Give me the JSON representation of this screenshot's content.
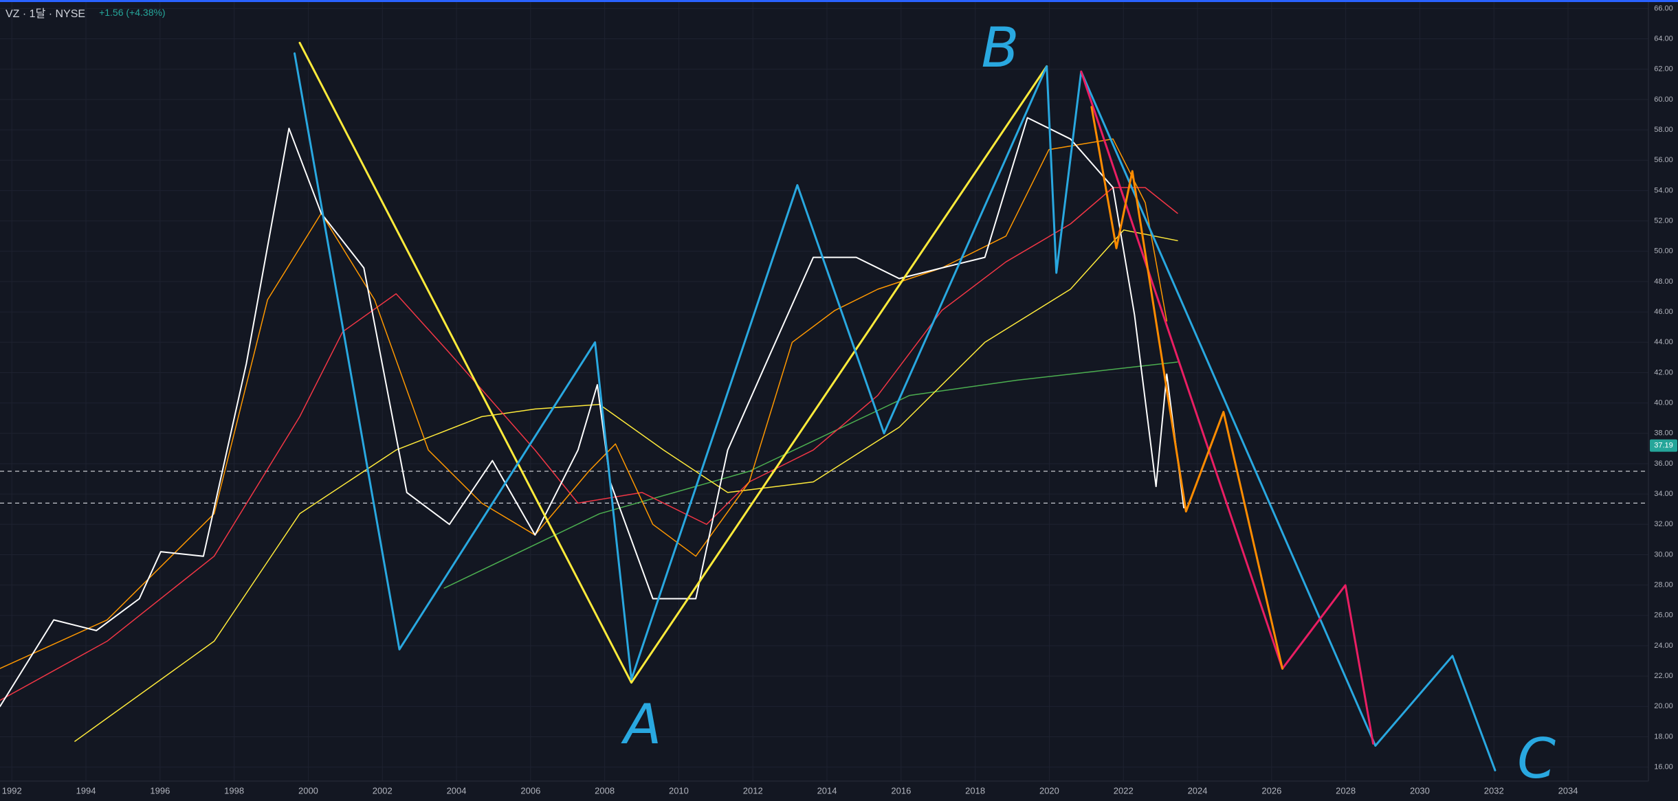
{
  "header": {
    "symbol": "VZ · 1달 · NYSE",
    "change": "+1.56 (+4.38%)"
  },
  "chart_data": {
    "type": "line",
    "xlim": [
      1991.68,
      2036.17
    ],
    "ylim": [
      15.08,
      66.56
    ],
    "xticks": [
      1992,
      1994,
      1996,
      1998,
      2000,
      2002,
      2004,
      2006,
      2008,
      2010,
      2012,
      2014,
      2016,
      2018,
      2020,
      2022,
      2024,
      2026,
      2028,
      2030,
      2032,
      2034
    ],
    "yticks": [
      {
        "value": 16,
        "label": "16.00"
      },
      {
        "value": 18,
        "label": "18.00"
      },
      {
        "value": 20,
        "label": "20.00"
      },
      {
        "value": 22,
        "label": "22.00"
      },
      {
        "value": 24,
        "label": "24.00"
      },
      {
        "value": 26,
        "label": "26.00"
      },
      {
        "value": 28,
        "label": "28.00"
      },
      {
        "value": 30,
        "label": "30.00"
      },
      {
        "value": 32,
        "label": "32.00"
      },
      {
        "value": 34,
        "label": "34.00"
      },
      {
        "value": 36,
        "label": "36.00"
      },
      {
        "value": 38,
        "label": "38.00"
      },
      {
        "value": 40,
        "label": "40.00"
      },
      {
        "value": 42,
        "label": "42.00"
      },
      {
        "value": 44,
        "label": "44.00"
      },
      {
        "value": 46,
        "label": "46.00"
      },
      {
        "value": 48,
        "label": "48.00"
      },
      {
        "value": 50,
        "label": "50.00"
      },
      {
        "value": 52,
        "label": "52.00"
      },
      {
        "value": 54,
        "label": "54.00"
      },
      {
        "value": 56,
        "label": "56.00"
      },
      {
        "value": 58,
        "label": "58.00"
      },
      {
        "value": 60,
        "label": "60.00"
      },
      {
        "value": 62,
        "label": "62.00"
      },
      {
        "value": 64,
        "label": "64.00"
      },
      {
        "value": 66,
        "label": "66.00"
      }
    ],
    "grid": true,
    "price_label": 37.19,
    "hlines": [
      35.5,
      33.4
    ],
    "annotations": [
      "B",
      "A",
      "C"
    ],
    "series": [
      {
        "color": "#4caf50",
        "width": 1.5,
        "x": [
          2003.67,
          2007.86,
          2011.9,
          2016.23,
          2019.12,
          2020.57,
          2023.46
        ],
        "values": [
          27.8,
          32.7,
          35.5,
          40.5,
          41.5,
          41.9,
          42.7
        ]
      },
      {
        "color": "#ffeb3b",
        "width": 1.5,
        "x": [
          1993.7,
          1997.46,
          1999.77,
          2002.37,
          2004.68,
          2006.12,
          2007.86,
          2009.59,
          2011.32,
          2013.63,
          2015.95,
          2018.26,
          2020.57,
          2022.01,
          2023.46
        ],
        "values": [
          17.7,
          24.3,
          32.7,
          36.9,
          39.1,
          39.6,
          39.9,
          36.9,
          34.1,
          34.8,
          38.4,
          44.0,
          47.5,
          51.4,
          50.7
        ]
      },
      {
        "color": "#f23645",
        "width": 1.5,
        "x": [
          1991.68,
          1994.57,
          1997.46,
          1999.77,
          2000.93,
          2002.37,
          2003.81,
          2006.12,
          2007.28,
          2009.01,
          2010.75,
          2011.9,
          2013.63,
          2015.37,
          2017.1,
          2018.83,
          2020.57,
          2021.72,
          2022.59,
          2023.46
        ],
        "values": [
          20.4,
          24.3,
          29.9,
          39.1,
          44.7,
          47.2,
          43.3,
          36.9,
          33.4,
          34.1,
          32.0,
          34.8,
          36.9,
          40.5,
          46.1,
          49.3,
          51.8,
          54.2,
          54.2,
          52.5
        ]
      },
      {
        "color": "#ff9800",
        "width": 1.5,
        "x": [
          1991.68,
          1994.57,
          1997.46,
          1998.9,
          2000.35,
          2001.79,
          2003.24,
          2004.68,
          2006.12,
          2007.57,
          2008.29,
          2009.3,
          2010.46,
          2011.9,
          2013.06,
          2014.21,
          2015.37,
          2017.1,
          2018.83,
          2019.99,
          2021.72,
          2022.59,
          2023.17
        ],
        "values": [
          22.5,
          25.7,
          32.7,
          46.8,
          52.5,
          46.8,
          36.9,
          33.4,
          31.3,
          35.5,
          37.3,
          32.0,
          29.9,
          34.8,
          44.0,
          46.1,
          47.5,
          48.9,
          51.0,
          56.7,
          57.4,
          53.2,
          45.4
        ]
      },
      {
        "color": "#ffffff",
        "width": 2,
        "x": [
          1991.68,
          1993.13,
          1994.28,
          1995.44,
          1996.02,
          1997.17,
          1998.33,
          1999.48,
          2000.35,
          2001.5,
          2002.66,
          2003.81,
          2004.97,
          2006.12,
          2007.28,
          2007.8,
          2008.15,
          2009.3,
          2010.46,
          2011.32,
          2012.48,
          2013.63,
          2014.79,
          2015.95,
          2017.1,
          2018.26,
          2019.41,
          2020.57,
          2021.72,
          2022.3,
          2022.88,
          2023.17,
          2023.63
        ],
        "values": [
          20.0,
          25.7,
          25.0,
          27.1,
          30.2,
          29.9,
          42.6,
          58.1,
          52.5,
          48.9,
          34.1,
          32.0,
          36.2,
          31.3,
          36.9,
          41.2,
          34.8,
          27.1,
          27.1,
          36.9,
          43.3,
          49.6,
          49.6,
          48.2,
          48.9,
          49.6,
          58.8,
          57.4,
          54.2,
          45.8,
          34.5,
          41.9,
          33.1
        ]
      },
      {
        "color": "#ffeb3b",
        "width": 3,
        "x": [
          1999.77,
          2008.72,
          2019.93
        ],
        "values": [
          63.74,
          21.57,
          62.19
        ]
      },
      {
        "color": "#29a8e0",
        "width": 3,
        "x": [
          1999.63,
          2002.46,
          2007.74,
          2008.72,
          2013.2,
          2015.54,
          2019.93,
          2020.19,
          2020.86,
          2028.8,
          2030.88,
          2032.03
        ],
        "values": [
          63.04,
          23.76,
          44.0,
          21.78,
          54.36,
          38.0,
          62.19,
          48.58,
          61.84,
          17.41,
          23.33,
          15.79
        ]
      },
      {
        "color": "#e91e63",
        "width": 3,
        "x": [
          2020.86,
          2026.29,
          2027.99,
          2028.74
        ],
        "values": [
          61.84,
          22.49,
          27.99,
          17.55
        ]
      },
      {
        "color": "#ff8c00",
        "width": 3,
        "x": [
          2021.14,
          2021.81,
          2022.24,
          2023.69,
          2024.7,
          2026.29
        ],
        "values": [
          59.51,
          50.2,
          55.28,
          32.85,
          39.41,
          22.49
        ]
      }
    ]
  }
}
